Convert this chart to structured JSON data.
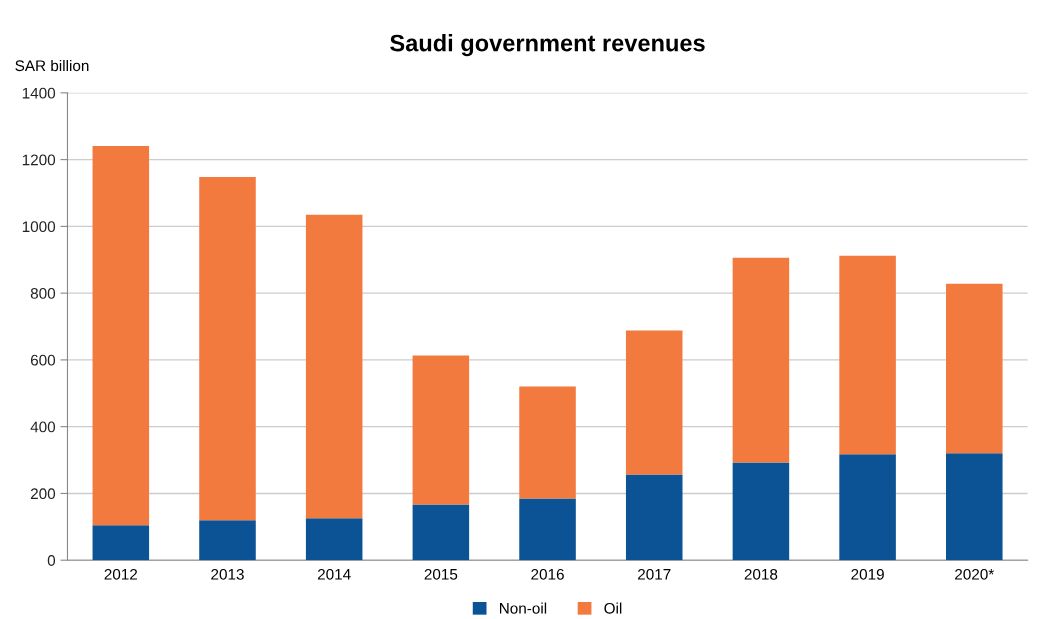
{
  "chart_data": {
    "type": "bar",
    "title": "Saudi government revenues",
    "ylabel": "SAR billion",
    "categories": [
      "2012",
      "2013",
      "2014",
      "2015",
      "2016",
      "2017",
      "2018",
      "2019",
      "2020*"
    ],
    "series": [
      {
        "name": "Non-oil",
        "color": "#0b5394",
        "values": [
          105,
          120,
          126,
          167,
          185,
          257,
          293,
          317,
          320
        ]
      },
      {
        "name": "Oil",
        "color": "#f27a3f",
        "values": [
          1136,
          1028,
          909,
          446,
          335,
          431,
          613,
          595,
          508
        ]
      }
    ],
    "stacked": true,
    "ylim": [
      0,
      1400
    ],
    "yticks": [
      0,
      200,
      400,
      600,
      800,
      1000,
      1200,
      1400
    ],
    "grid": "y",
    "legend": "bottom"
  }
}
